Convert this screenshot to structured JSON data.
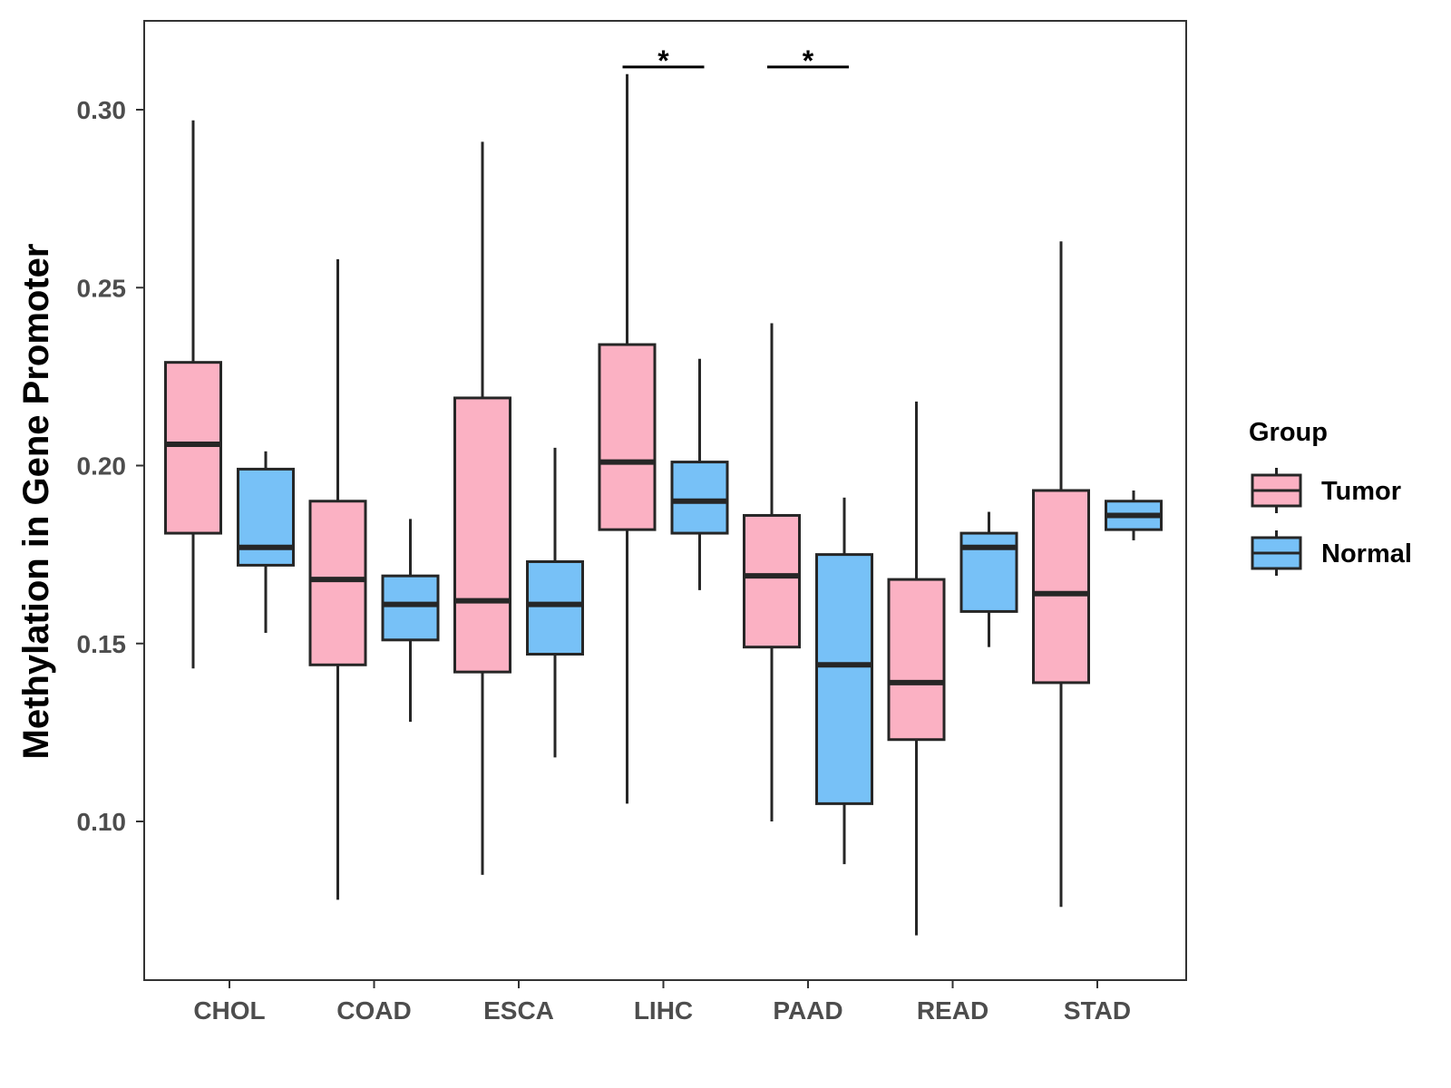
{
  "chart_data": {
    "type": "boxplot",
    "title": "",
    "xlabel": "",
    "ylabel": "Methylation in Gene Promoter",
    "ylim": [
      0.055,
      0.325
    ],
    "yticks": [
      "0.10",
      "0.15",
      "0.20",
      "0.25",
      "0.30"
    ],
    "categories": [
      "CHOL",
      "COAD",
      "ESCA",
      "LIHC",
      "PAAD",
      "READ",
      "STAD"
    ],
    "legend": {
      "title": "Group",
      "position": "right",
      "entries": [
        "Tumor",
        "Normal"
      ]
    },
    "colors": {
      "Tumor": "#fbb1c3",
      "Normal": "#77c1f7",
      "stroke": "#262626"
    },
    "series": [
      {
        "name": "Tumor",
        "boxes": [
          {
            "min": 0.143,
            "q1": 0.181,
            "median": 0.206,
            "q3": 0.229,
            "max": 0.297
          },
          {
            "min": 0.078,
            "q1": 0.144,
            "median": 0.168,
            "q3": 0.19,
            "max": 0.258
          },
          {
            "min": 0.085,
            "q1": 0.142,
            "median": 0.162,
            "q3": 0.219,
            "max": 0.291
          },
          {
            "min": 0.105,
            "q1": 0.182,
            "median": 0.201,
            "q3": 0.234,
            "max": 0.31
          },
          {
            "min": 0.1,
            "q1": 0.149,
            "median": 0.169,
            "q3": 0.186,
            "max": 0.24
          },
          {
            "min": 0.068,
            "q1": 0.123,
            "median": 0.139,
            "q3": 0.168,
            "max": 0.218
          },
          {
            "min": 0.076,
            "q1": 0.139,
            "median": 0.164,
            "q3": 0.193,
            "max": 0.263
          }
        ]
      },
      {
        "name": "Normal",
        "boxes": [
          {
            "min": 0.153,
            "q1": 0.172,
            "median": 0.177,
            "q3": 0.199,
            "max": 0.204
          },
          {
            "min": 0.128,
            "q1": 0.151,
            "median": 0.161,
            "q3": 0.169,
            "max": 0.185
          },
          {
            "min": 0.118,
            "q1": 0.147,
            "median": 0.161,
            "q3": 0.173,
            "max": 0.205
          },
          {
            "min": 0.165,
            "q1": 0.181,
            "median": 0.19,
            "q3": 0.201,
            "max": 0.23
          },
          {
            "min": 0.088,
            "q1": 0.105,
            "median": 0.144,
            "q3": 0.175,
            "max": 0.191
          },
          {
            "min": 0.149,
            "q1": 0.159,
            "median": 0.177,
            "q3": 0.181,
            "max": 0.187
          },
          {
            "min": 0.179,
            "q1": 0.182,
            "median": 0.186,
            "q3": 0.19,
            "max": 0.193
          }
        ]
      }
    ],
    "annotations": [
      {
        "category": "LIHC",
        "text": "*",
        "y": 0.312
      },
      {
        "category": "PAAD",
        "text": "*",
        "y": 0.312
      }
    ]
  }
}
